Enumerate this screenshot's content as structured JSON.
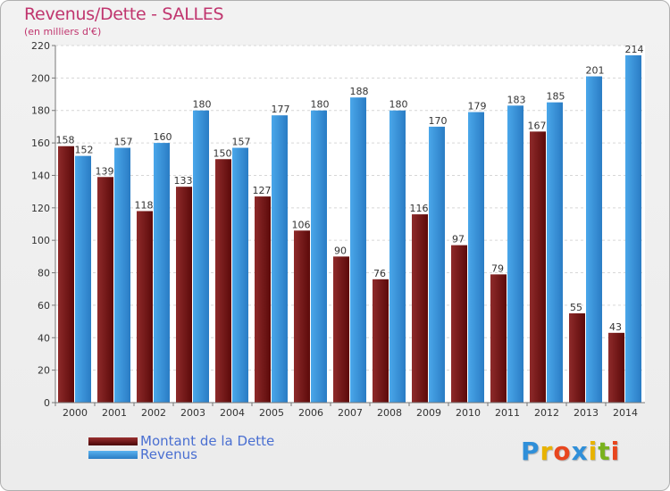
{
  "title": "Revenus/Dette - SALLES",
  "subtitle": "(en milliers d'€)",
  "logo": {
    "letters": [
      "P",
      "r",
      "o",
      "x",
      "i",
      "t",
      "i"
    ],
    "colors": [
      "#2f8fd9",
      "#e8b300",
      "#e8461e",
      "#2f8fd9",
      "#e8b300",
      "#79b21d",
      "#e8461e"
    ]
  },
  "legend": {
    "items": [
      {
        "label": "Montant de la Dette",
        "color": "#7a1a1a"
      },
      {
        "label": "Revenus",
        "color": "#3a95dd"
      }
    ]
  },
  "chart_data": {
    "type": "bar",
    "categories": [
      "2000",
      "2001",
      "2002",
      "2003",
      "2004",
      "2005",
      "2006",
      "2007",
      "2008",
      "2009",
      "2010",
      "2011",
      "2012",
      "2013",
      "2014"
    ],
    "series": [
      {
        "name": "Montant de la Dette",
        "color": "#7a1a1a",
        "values": [
          158,
          139,
          118,
          133,
          150,
          127,
          106,
          90,
          76,
          116,
          97,
          79,
          167,
          55,
          43
        ]
      },
      {
        "name": "Revenus",
        "color": "#3a95dd",
        "values": [
          152,
          157,
          160,
          180,
          157,
          177,
          180,
          188,
          180,
          170,
          179,
          183,
          185,
          201,
          214
        ]
      }
    ],
    "ylim": [
      0,
      220
    ],
    "yticks": [
      0,
      20,
      40,
      60,
      80,
      100,
      120,
      140,
      160,
      180,
      200,
      220
    ],
    "grid": true
  }
}
